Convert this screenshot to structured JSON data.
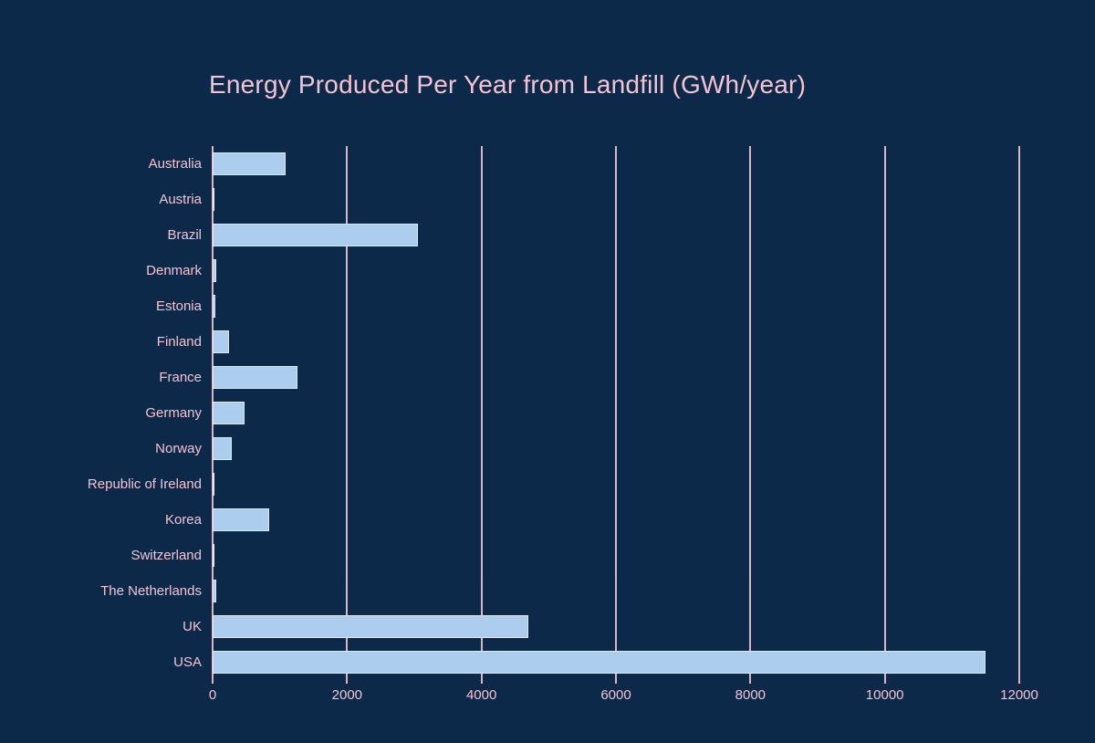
{
  "chart_data": {
    "type": "bar",
    "orientation": "horizontal",
    "title": "Energy Produced Per Year from Landfill (GWh/year)",
    "xlabel": "",
    "ylabel": "",
    "categories": [
      "Australia",
      "Austria",
      "Brazil",
      "Denmark",
      "Estonia",
      "Finland",
      "France",
      "Germany",
      "Norway",
      "Republic of Ireland",
      "Korea",
      "Switzerland",
      "The Netherlands",
      "UK",
      "USA"
    ],
    "values": [
      1080,
      25,
      3050,
      60,
      40,
      240,
      1260,
      480,
      280,
      30,
      840,
      15,
      60,
      4700,
      11500
    ],
    "xlim": [
      0,
      12000
    ],
    "x_ticks": [
      0,
      2000,
      4000,
      6000,
      8000,
      10000,
      12000
    ],
    "grid": "vertical-gridlines",
    "legend": "none",
    "colors": {
      "background": "#0d2949",
      "bar_fill": "#accdee",
      "bar_border": "#dde9f7",
      "gridline": "#eec5d0",
      "text": "#f3c3d1"
    }
  }
}
